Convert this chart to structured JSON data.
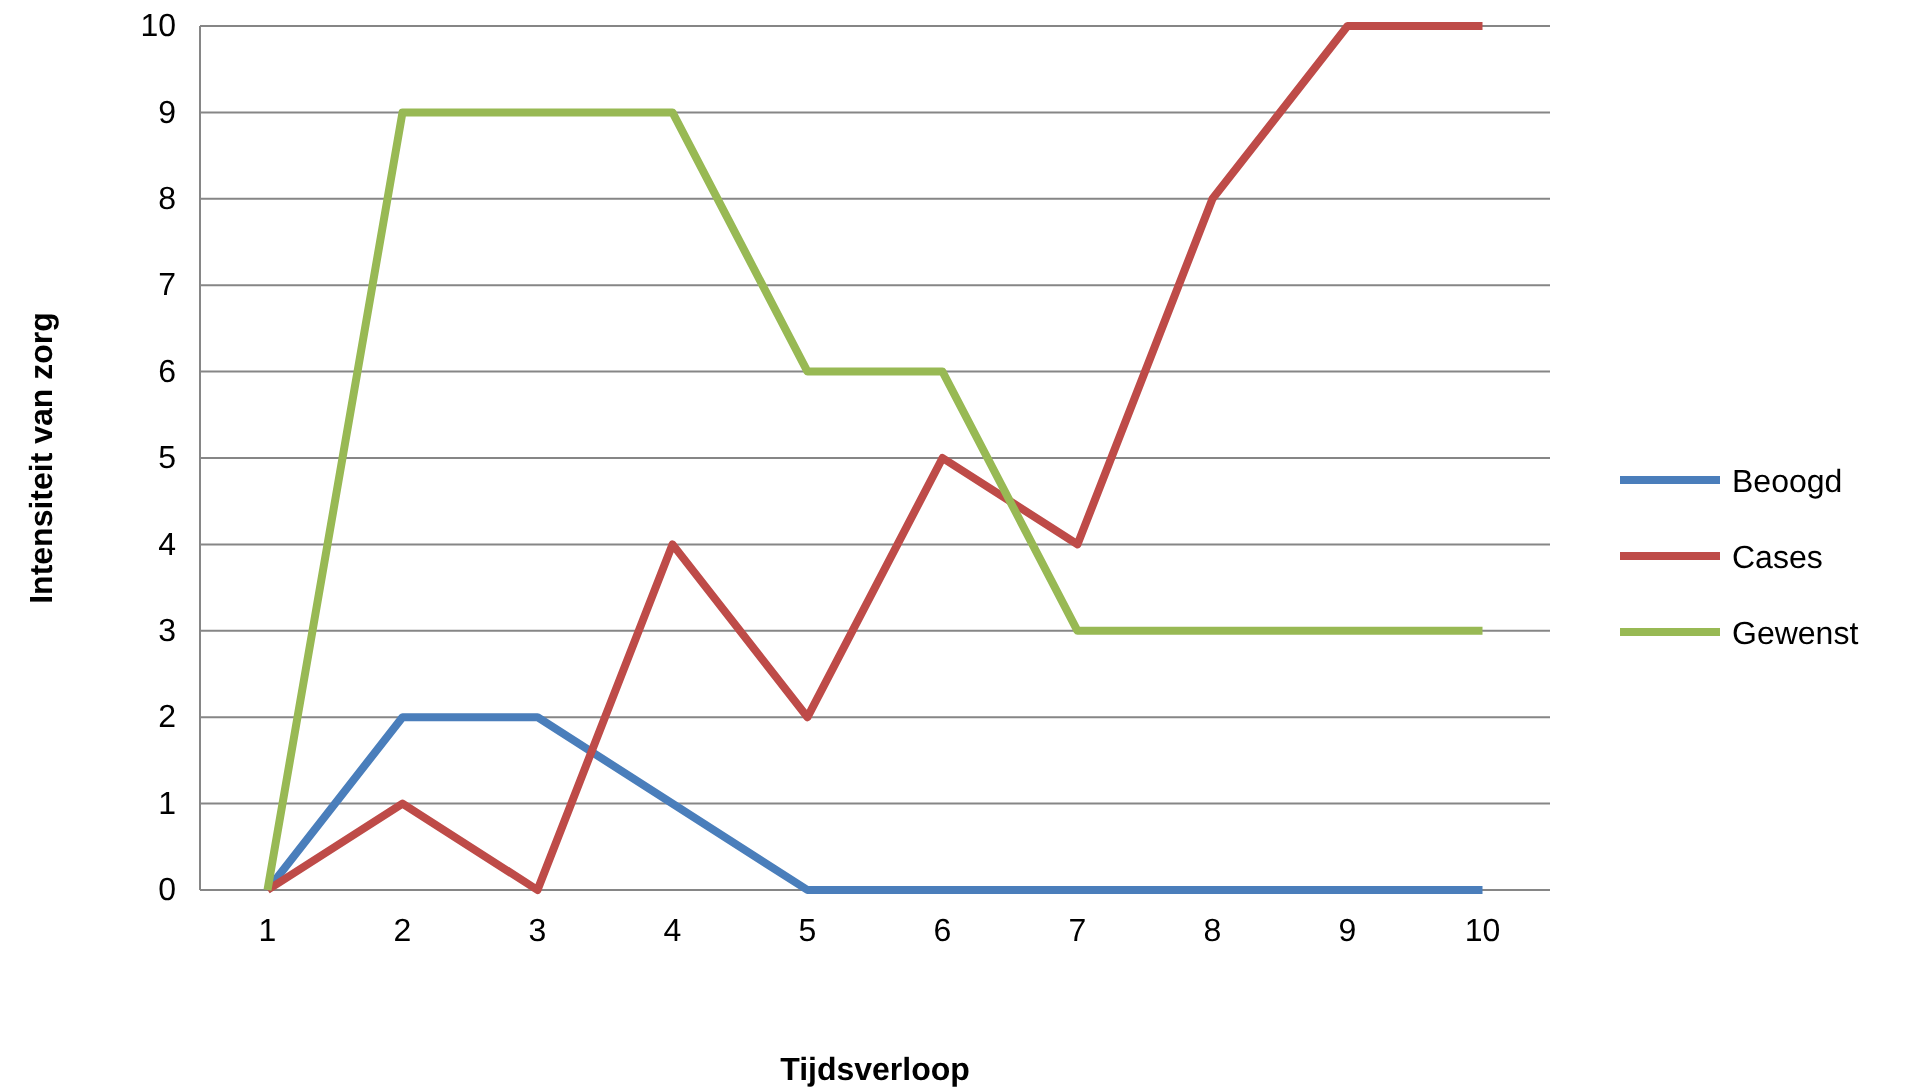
{
  "chart_data": {
    "type": "line",
    "xlabel": "Tijdsverloop",
    "ylabel": "Intensiteit van zorg",
    "categories": [
      "1",
      "2",
      "3",
      "4",
      "5",
      "6",
      "7",
      "8",
      "9",
      "10"
    ],
    "series": [
      {
        "name": "Beoogd",
        "color": "#4a7ebb",
        "values": [
          0,
          2,
          2,
          1,
          0,
          0,
          0,
          0,
          0,
          0
        ]
      },
      {
        "name": "Cases",
        "color": "#be4b48",
        "values": [
          0,
          1,
          0,
          4,
          2,
          5,
          4,
          8,
          10,
          10
        ]
      },
      {
        "name": "Gewenst",
        "color": "#98b954",
        "values": [
          0,
          9,
          9,
          9,
          6,
          6,
          3,
          3,
          3,
          3
        ]
      }
    ],
    "ylim": [
      0,
      10
    ],
    "yticks": [
      0,
      1,
      2,
      3,
      4,
      5,
      6,
      7,
      8,
      9,
      10
    ],
    "grid": "y",
    "legend": "right",
    "marker": "none",
    "line_style": "solid"
  }
}
